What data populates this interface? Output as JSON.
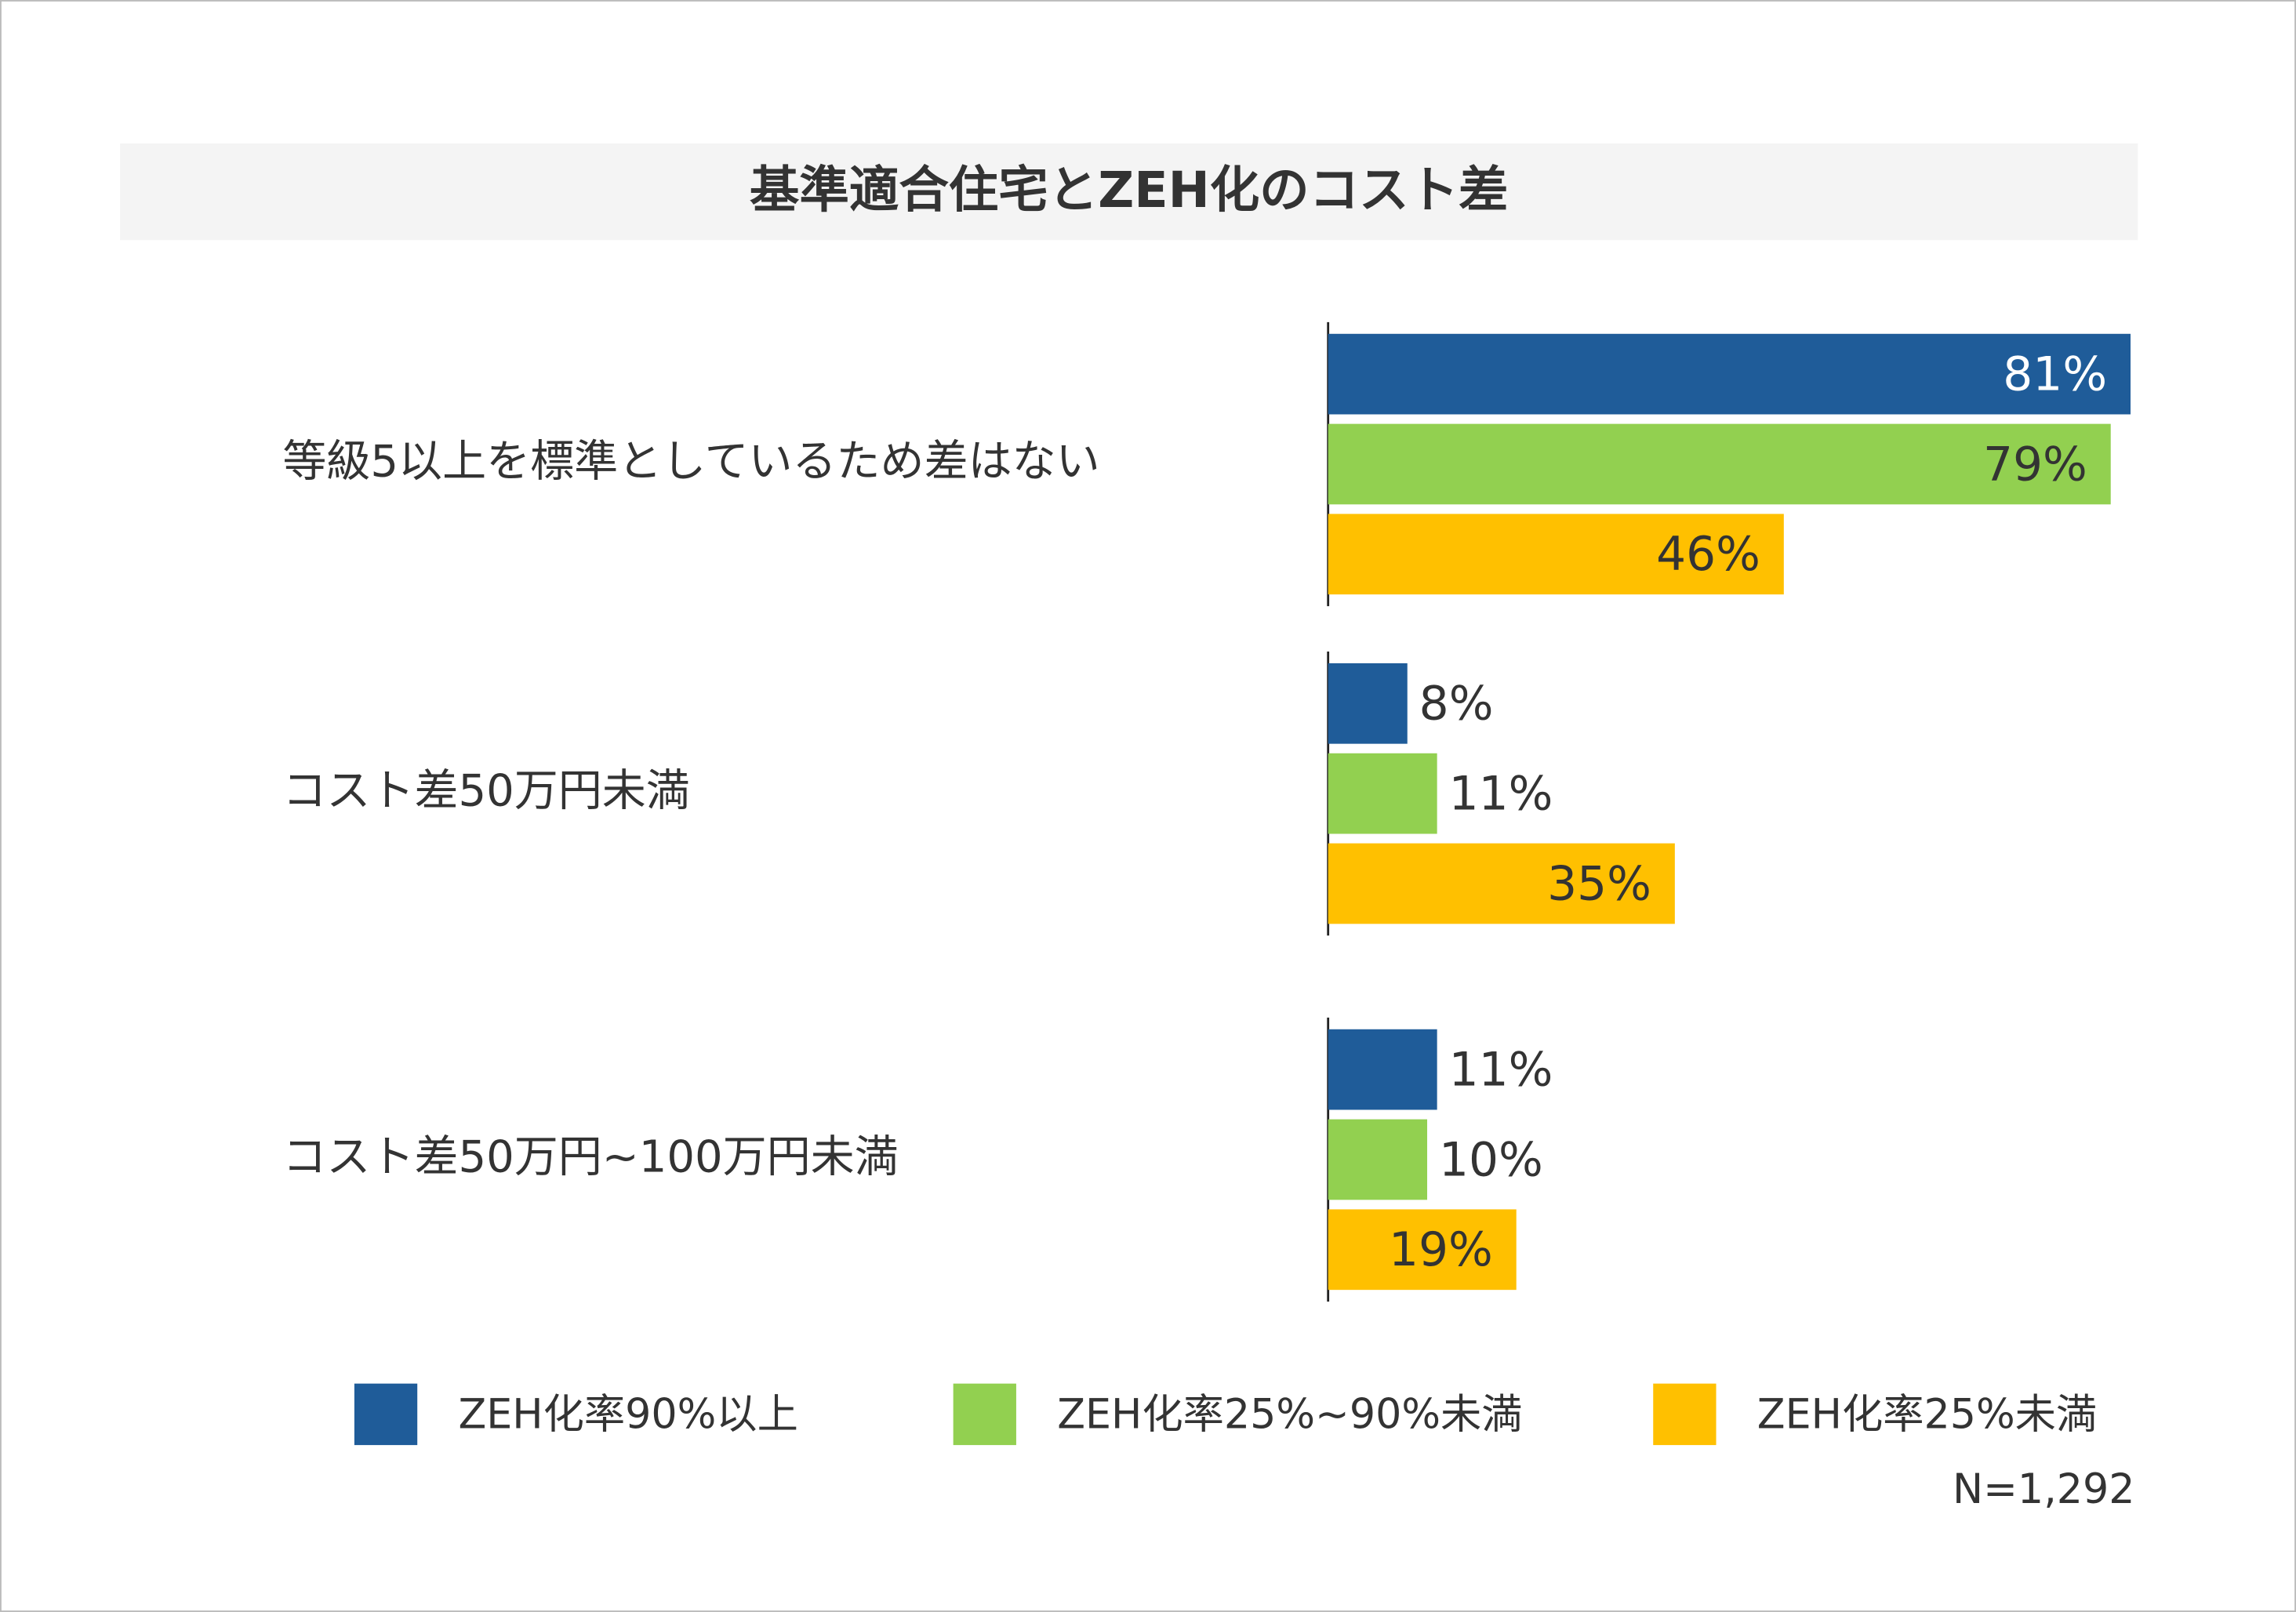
{
  "chart_data": {
    "type": "bar",
    "orientation": "horizontal",
    "title": "基準適合住宅とZEH化のコスト差",
    "categories": [
      "等級5以上を標準としているため差はない",
      "コスト差50万円未満",
      "コスト差50万円~100万円未満"
    ],
    "series": [
      {
        "name": "ZEH化率90%以上",
        "color": "#1f5c99",
        "values": [
          81,
          8,
          11
        ],
        "value_labels": [
          "81%",
          "8%",
          "11%"
        ]
      },
      {
        "name": "ZEH化率25%~90%未満",
        "color": "#92d050",
        "values": [
          79,
          11,
          10
        ],
        "value_labels": [
          "79%",
          "11%",
          "10%"
        ]
      },
      {
        "name": "ZEH化率25%未満",
        "color": "#ffc000",
        "values": [
          46,
          35,
          19
        ],
        "value_labels": [
          "46%",
          "35%",
          "19%"
        ]
      }
    ],
    "note": "N=1,292"
  }
}
